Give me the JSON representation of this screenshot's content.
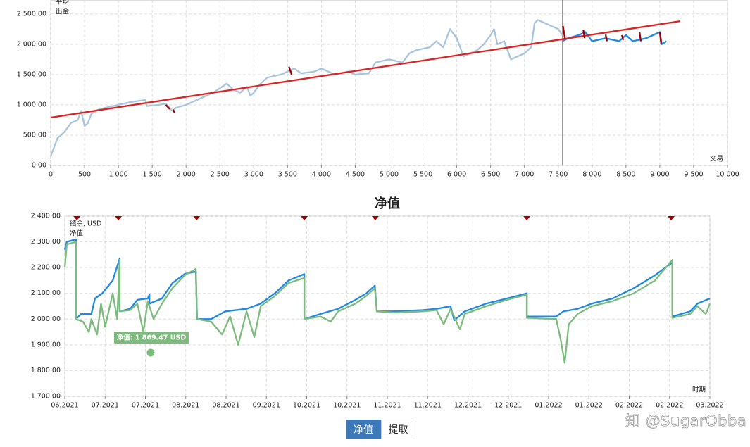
{
  "chart_data": [
    {
      "type": "line",
      "xlim": [
        0,
        10000
      ],
      "ylim": [
        0,
        2730
      ],
      "xticks": [
        0,
        500,
        {
          "value": 1000,
          "label": "1 000"
        },
        {
          "value": 1500,
          "label": "1 500"
        },
        {
          "value": 2000,
          "label": "2 000"
        },
        {
          "value": 2500,
          "label": "2 500"
        },
        {
          "value": 3000,
          "label": "3 000"
        },
        {
          "value": 3500,
          "label": "3 500"
        },
        {
          "value": 4000,
          "label": "4 000"
        },
        {
          "value": 4500,
          "label": "4 500"
        },
        {
          "value": 5000,
          "label": "5 000"
        },
        {
          "value": 5500,
          "label": "5 500"
        },
        {
          "value": 6000,
          "label": "6 000"
        },
        {
          "value": 6500,
          "label": "6 500"
        },
        {
          "value": 7000,
          "label": "7 000"
        },
        {
          "value": 7500,
          "label": "7 500"
        },
        {
          "value": 8000,
          "label": "8 000"
        },
        {
          "value": 8500,
          "label": "8 500"
        },
        {
          "value": 9000,
          "label": "9 000"
        },
        {
          "value": 9500,
          "label": "9 500"
        },
        {
          "value": 10000,
          "label": "10 000"
        }
      ],
      "yticks": [
        {
          "value": 0,
          "label": "0.00"
        },
        {
          "value": 500,
          "label": "500.00"
        },
        {
          "value": 1000,
          "label": "1 000.00"
        },
        {
          "value": 1500,
          "label": "1 500.00"
        },
        {
          "value": 2000,
          "label": "2 000.00"
        },
        {
          "value": 2500,
          "label": "2 500.00"
        }
      ],
      "grid": true,
      "legend": "top-left",
      "x_label": "交易",
      "divider_x": 7560,
      "series": [
        {
          "color": "#a9c5de",
          "x": [
            0,
            100,
            200,
            300,
            400,
            450,
            500,
            550,
            600,
            700,
            800,
            1000,
            1200,
            1400,
            1420,
            1600,
            1700,
            1800,
            1850,
            2000,
            2200,
            2400,
            2600,
            2700,
            2800,
            2900,
            2950,
            3000,
            3100,
            3200,
            3400,
            3600,
            3700,
            3900,
            4000,
            4200,
            4400,
            4500,
            4700,
            4800,
            5000,
            5200,
            5300,
            5400,
            5600,
            5700,
            5800,
            5900,
            6000,
            6100,
            6200,
            6300,
            6400,
            6500,
            6550,
            6600,
            6700,
            6800,
            6900,
            7000,
            7100,
            7150,
            7200,
            7300,
            7400,
            7500,
            7560
          ],
          "values": [
            150,
            450,
            550,
            700,
            750,
            900,
            650,
            700,
            850,
            920,
            950,
            1000,
            1050,
            1080,
            980,
            1000,
            1020,
            900,
            950,
            1000,
            1100,
            1200,
            1350,
            1250,
            1200,
            1300,
            1150,
            1200,
            1350,
            1450,
            1500,
            1600,
            1520,
            1550,
            1600,
            1500,
            1550,
            1500,
            1520,
            1700,
            1750,
            1700,
            1850,
            1900,
            1950,
            2050,
            1950,
            2250,
            2100,
            1800,
            1850,
            1900,
            2000,
            2150,
            2250,
            2000,
            2050,
            1750,
            1800,
            1850,
            1950,
            2350,
            2400,
            2350,
            2300,
            2250,
            2150
          ]
        },
        {
          "color": "#1e88e5",
          "x": [
            7560,
            7650,
            7800,
            7900,
            8000,
            8200,
            8400,
            8500,
            8600,
            8800,
            8900,
            9000,
            9030,
            9100
          ],
          "values": [
            2050,
            2100,
            2150,
            2200,
            2050,
            2100,
            2050,
            2150,
            2050,
            2100,
            2150,
            2200,
            2000,
            2050
          ]
        },
        {
          "name": "平均",
          "color": "#dd2222",
          "x": [
            0,
            9300
          ],
          "values": [
            790,
            2380
          ]
        },
        {
          "name": "出金",
          "color": "#a00000",
          "x": [
            1700,
            1760,
            null,
            1810,
            1830,
            null,
            3520,
            3560,
            null,
            7570,
            7600,
            null,
            7870,
            7890,
            null,
            8200,
            8220,
            null,
            8440,
            8460,
            null,
            8700,
            8720,
            null,
            9000,
            9020
          ],
          "values": [
            1000,
            930,
            null,
            920,
            870,
            null,
            1630,
            1500,
            null,
            2300,
            2080,
            null,
            2240,
            2100,
            null,
            2160,
            2050,
            null,
            2150,
            2070,
            null,
            2200,
            2050,
            null,
            2200,
            2010
          ]
        }
      ]
    },
    {
      "type": "line",
      "title": "净值",
      "xlim": [
        0,
        16
      ],
      "ylim": [
        1700,
        2400
      ],
      "xticks": [
        {
          "value": 0,
          "label": "06.2021"
        },
        {
          "value": 1,
          "label": "07.2021"
        },
        {
          "value": 2,
          "label": "07.2021"
        },
        {
          "value": 3,
          "label": "08.2021"
        },
        {
          "value": 4,
          "label": "08.2021"
        },
        {
          "value": 5,
          "label": "09.2021"
        },
        {
          "value": 6,
          "label": "10.2021"
        },
        {
          "value": 7,
          "label": "10.2021"
        },
        {
          "value": 8,
          "label": "11.2021"
        },
        {
          "value": 9,
          "label": "11.2021"
        },
        {
          "value": 10,
          "label": "12.2021"
        },
        {
          "value": 11,
          "label": "12.2021"
        },
        {
          "value": 12,
          "label": "01.2022"
        },
        {
          "value": 13,
          "label": "01.2022"
        },
        {
          "value": 14,
          "label": "02.2022"
        },
        {
          "value": 15,
          "label": "02.2022"
        },
        {
          "value": 16,
          "label": "03.2022"
        }
      ],
      "yticks": [
        {
          "value": 1700,
          "label": "1 700.00"
        },
        {
          "value": 1800,
          "label": "1 800.00"
        },
        {
          "value": 1900,
          "label": "1 900.00"
        },
        {
          "value": 2000,
          "label": "2 000.00"
        },
        {
          "value": 2100,
          "label": "2 100.00"
        },
        {
          "value": 2200,
          "label": "2 200.00"
        },
        {
          "value": 2300,
          "label": "2 300.00"
        },
        {
          "value": 2400,
          "label": "2 400.00"
        }
      ],
      "grid": true,
      "legend": "top-left",
      "x_label": "时期",
      "events_x": [
        0.3,
        1.33,
        3.27,
        5.94,
        7.7,
        11.46,
        15.04
      ],
      "series": [
        {
          "name": "结余, USD",
          "color": "#1e88e5",
          "x": [
            0,
            0.05,
            0.28,
            0.28,
            0.4,
            0.66,
            0.75,
            0.93,
            1.19,
            1.36,
            1.36,
            1.62,
            1.8,
            2.06,
            2.1,
            2.1,
            2.41,
            2.67,
            2.97,
            3.25,
            3.28,
            3.63,
            3.98,
            4.51,
            4.86,
            5.21,
            5.55,
            5.94,
            5.94,
            6.34,
            6.78,
            7.21,
            7.48,
            7.69,
            7.74,
            8.17,
            8.87,
            9.22,
            9.57,
            9.66,
            9.92,
            10.45,
            10.97,
            11.46,
            11.46,
            12.19,
            12.37,
            12.72,
            13.07,
            13.59,
            14.11,
            14.64,
            15.07,
            15.07,
            15.51,
            15.69,
            16
          ],
          "values": [
            2270,
            2300,
            2310,
            2000,
            2020,
            2020,
            2080,
            2100,
            2150,
            2235,
            2030,
            2040,
            2075,
            2080,
            2095,
            2060,
            2080,
            2140,
            2175,
            2185,
            2000,
            2000,
            2030,
            2040,
            2060,
            2100,
            2150,
            2175,
            2000,
            2020,
            2040,
            2075,
            2100,
            2130,
            2030,
            2030,
            2035,
            2040,
            2050,
            1995,
            2030,
            2060,
            2080,
            2100,
            2010,
            2010,
            2030,
            2040,
            2060,
            2080,
            2120,
            2170,
            2220,
            2010,
            2030,
            2060,
            2080
          ]
        },
        {
          "name": "净值",
          "color": "#7dbb7d",
          "x": [
            0,
            0.05,
            0.28,
            0.28,
            0.45,
            0.6,
            0.66,
            0.8,
            0.9,
            1.0,
            1.19,
            1.3,
            1.36,
            1.36,
            1.62,
            1.8,
            1.95,
            2.06,
            2.2,
            2.41,
            2.67,
            2.97,
            3.25,
            3.28,
            3.63,
            3.9,
            4.1,
            4.3,
            4.51,
            4.7,
            4.86,
            5.21,
            5.55,
            5.94,
            5.94,
            6.34,
            6.6,
            6.78,
            7.21,
            7.48,
            7.69,
            7.74,
            8.17,
            8.87,
            9.22,
            9.4,
            9.57,
            9.8,
            9.92,
            10.45,
            10.97,
            11.46,
            11.46,
            12.19,
            12.3,
            12.4,
            12.5,
            12.72,
            13.07,
            13.59,
            14.11,
            14.64,
            15.07,
            15.07,
            15.51,
            15.69,
            15.9,
            16
          ],
          "values": [
            2200,
            2290,
            2300,
            2000,
            1990,
            1950,
            2000,
            1940,
            2060,
            1970,
            2100,
            2000,
            2230,
            2030,
            2035,
            2060,
            1950,
            2070,
            2000,
            2060,
            2120,
            2170,
            2195,
            2000,
            1990,
            1940,
            2010,
            1900,
            2030,
            1930,
            2050,
            2090,
            2140,
            2160,
            2000,
            2010,
            1990,
            2030,
            2060,
            2090,
            2120,
            2030,
            2025,
            2030,
            2035,
            1980,
            2040,
            1960,
            2020,
            2050,
            2075,
            2095,
            2005,
            2000,
            1920,
            1830,
            1980,
            2020,
            2050,
            2070,
            2100,
            2150,
            2230,
            2005,
            2020,
            2050,
            2020,
            2060
          ]
        }
      ],
      "tooltip": {
        "label": "净值: 1 869.47 USD",
        "x": 2.13,
        "value": 1869.47
      }
    }
  ],
  "buttons": [
    "净值",
    "提取"
  ],
  "watermark": "知 @SugarObba"
}
